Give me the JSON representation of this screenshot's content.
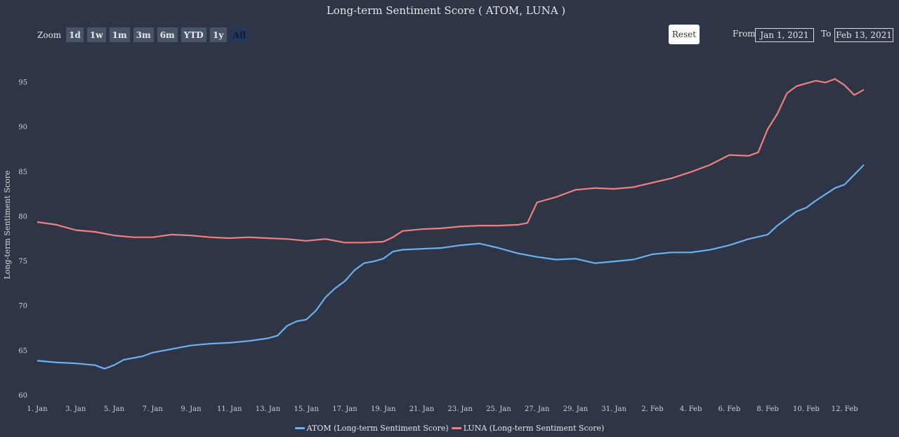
{
  "title": "Long-term Sentiment Score ( ATOM, LUNA )",
  "zoom": {
    "label": "Zoom",
    "buttons": [
      "1d",
      "1w",
      "1m",
      "3m",
      "6m",
      "YTD",
      "1y",
      "All"
    ],
    "active": "All"
  },
  "reset_label": "Reset",
  "range": {
    "from_label": "From",
    "from_value": "Jan 1, 2021",
    "to_label": "To",
    "to_value": "Feb 13, 2021"
  },
  "colors": {
    "background": "#2d3546",
    "atom": "#6cb0ee",
    "luna": "#f08080"
  },
  "chart_data": {
    "type": "line",
    "title": "Long-term Sentiment Score ( ATOM, LUNA )",
    "xlabel": "",
    "ylabel": "Long-term Sentiment Score",
    "x_range": [
      "2021-01-01",
      "2021-02-13"
    ],
    "ylim": [
      60,
      97
    ],
    "y_ticks": [
      60,
      65,
      70,
      75,
      80,
      85,
      90,
      95
    ],
    "x_ticks": [
      {
        "date": "2021-01-01",
        "label": "1. Jan"
      },
      {
        "date": "2021-01-03",
        "label": "3. Jan"
      },
      {
        "date": "2021-01-05",
        "label": "5. Jan"
      },
      {
        "date": "2021-01-07",
        "label": "7. Jan"
      },
      {
        "date": "2021-01-09",
        "label": "9. Jan"
      },
      {
        "date": "2021-01-11",
        "label": "11. Jan"
      },
      {
        "date": "2021-01-13",
        "label": "13. Jan"
      },
      {
        "date": "2021-01-15",
        "label": "15. Jan"
      },
      {
        "date": "2021-01-17",
        "label": "17. Jan"
      },
      {
        "date": "2021-01-19",
        "label": "19. Jan"
      },
      {
        "date": "2021-01-21",
        "label": "21. Jan"
      },
      {
        "date": "2021-01-23",
        "label": "23. Jan"
      },
      {
        "date": "2021-01-25",
        "label": "25. Jan"
      },
      {
        "date": "2021-01-27",
        "label": "27. Jan"
      },
      {
        "date": "2021-01-29",
        "label": "29. Jan"
      },
      {
        "date": "2021-01-31",
        "label": "31. Jan"
      },
      {
        "date": "2021-02-02",
        "label": "2. Feb"
      },
      {
        "date": "2021-02-04",
        "label": "4. Feb"
      },
      {
        "date": "2021-02-06",
        "label": "6. Feb"
      },
      {
        "date": "2021-02-08",
        "label": "8. Feb"
      },
      {
        "date": "2021-02-10",
        "label": "10. Feb"
      },
      {
        "date": "2021-02-12",
        "label": "12. Feb"
      }
    ],
    "grid": false,
    "legend_position": "bottom-center",
    "series": [
      {
        "name": "ATOM (Long-term Sentiment Score)",
        "color": "#6cb0ee",
        "points": [
          [
            "2021-01-01",
            63.9
          ],
          [
            "2021-01-02",
            63.7
          ],
          [
            "2021-01-03",
            63.6
          ],
          [
            "2021-01-04",
            63.4
          ],
          [
            "2021-01-04 12:00",
            63.0
          ],
          [
            "2021-01-05",
            63.4
          ],
          [
            "2021-01-05 12:00",
            64.0
          ],
          [
            "2021-01-06",
            64.2
          ],
          [
            "2021-01-06 12:00",
            64.4
          ],
          [
            "2021-01-07",
            64.8
          ],
          [
            "2021-01-08",
            65.2
          ],
          [
            "2021-01-09",
            65.6
          ],
          [
            "2021-01-10",
            65.8
          ],
          [
            "2021-01-11",
            65.9
          ],
          [
            "2021-01-12",
            66.1
          ],
          [
            "2021-01-13",
            66.4
          ],
          [
            "2021-01-13 12:00",
            66.7
          ],
          [
            "2021-01-14",
            67.8
          ],
          [
            "2021-01-14 12:00",
            68.3
          ],
          [
            "2021-01-15",
            68.5
          ],
          [
            "2021-01-15 12:00",
            69.5
          ],
          [
            "2021-01-16",
            71.0
          ],
          [
            "2021-01-16 12:00",
            72.0
          ],
          [
            "2021-01-17",
            72.8
          ],
          [
            "2021-01-17 12:00",
            74.0
          ],
          [
            "2021-01-18",
            74.8
          ],
          [
            "2021-01-18 12:00",
            75.0
          ],
          [
            "2021-01-19",
            75.3
          ],
          [
            "2021-01-19 12:00",
            76.1
          ],
          [
            "2021-01-20",
            76.3
          ],
          [
            "2021-01-21",
            76.4
          ],
          [
            "2021-01-22",
            76.5
          ],
          [
            "2021-01-23",
            76.8
          ],
          [
            "2021-01-24",
            77.0
          ],
          [
            "2021-01-25",
            76.5
          ],
          [
            "2021-01-26",
            75.9
          ],
          [
            "2021-01-27",
            75.5
          ],
          [
            "2021-01-28",
            75.2
          ],
          [
            "2021-01-29",
            75.3
          ],
          [
            "2021-01-30",
            74.8
          ],
          [
            "2021-01-31",
            75.0
          ],
          [
            "2021-02-01",
            75.2
          ],
          [
            "2021-02-02",
            75.8
          ],
          [
            "2021-02-03",
            76.0
          ],
          [
            "2021-02-04",
            76.0
          ],
          [
            "2021-02-05",
            76.3
          ],
          [
            "2021-02-06",
            76.8
          ],
          [
            "2021-02-07",
            77.5
          ],
          [
            "2021-02-08",
            78.0
          ],
          [
            "2021-02-08 12:00",
            79.0
          ],
          [
            "2021-02-09",
            79.8
          ],
          [
            "2021-02-09 12:00",
            80.6
          ],
          [
            "2021-02-10",
            81.0
          ],
          [
            "2021-02-10 12:00",
            81.8
          ],
          [
            "2021-02-11",
            82.5
          ],
          [
            "2021-02-11 12:00",
            83.2
          ],
          [
            "2021-02-12",
            83.6
          ],
          [
            "2021-02-12 12:00",
            84.7
          ],
          [
            "2021-02-13",
            85.8
          ]
        ]
      },
      {
        "name": "LUNA (Long-term Sentiment Score)",
        "color": "#f08080",
        "points": [
          [
            "2021-01-01",
            79.4
          ],
          [
            "2021-01-02",
            79.1
          ],
          [
            "2021-01-03",
            78.5
          ],
          [
            "2021-01-04",
            78.3
          ],
          [
            "2021-01-05",
            77.9
          ],
          [
            "2021-01-06",
            77.7
          ],
          [
            "2021-01-07",
            77.7
          ],
          [
            "2021-01-08",
            78.0
          ],
          [
            "2021-01-09",
            77.9
          ],
          [
            "2021-01-10",
            77.7
          ],
          [
            "2021-01-11",
            77.6
          ],
          [
            "2021-01-12",
            77.7
          ],
          [
            "2021-01-13",
            77.6
          ],
          [
            "2021-01-14",
            77.5
          ],
          [
            "2021-01-15",
            77.3
          ],
          [
            "2021-01-16",
            77.5
          ],
          [
            "2021-01-17",
            77.1
          ],
          [
            "2021-01-18",
            77.1
          ],
          [
            "2021-01-19",
            77.2
          ],
          [
            "2021-01-19 12:00",
            77.7
          ],
          [
            "2021-01-20",
            78.4
          ],
          [
            "2021-01-21",
            78.6
          ],
          [
            "2021-01-22",
            78.7
          ],
          [
            "2021-01-23",
            78.9
          ],
          [
            "2021-01-24",
            79.0
          ],
          [
            "2021-01-25",
            79.0
          ],
          [
            "2021-01-26",
            79.1
          ],
          [
            "2021-01-26 12:00",
            79.3
          ],
          [
            "2021-01-27",
            81.6
          ],
          [
            "2021-01-28",
            82.2
          ],
          [
            "2021-01-29",
            83.0
          ],
          [
            "2021-01-30",
            83.2
          ],
          [
            "2021-01-31",
            83.1
          ],
          [
            "2021-02-01",
            83.3
          ],
          [
            "2021-02-02",
            83.8
          ],
          [
            "2021-02-03",
            84.3
          ],
          [
            "2021-02-04",
            85.0
          ],
          [
            "2021-02-05",
            85.8
          ],
          [
            "2021-02-06",
            86.9
          ],
          [
            "2021-02-07",
            86.8
          ],
          [
            "2021-02-07 12:00",
            87.2
          ],
          [
            "2021-02-08",
            89.8
          ],
          [
            "2021-02-08 12:00",
            91.5
          ],
          [
            "2021-02-09",
            93.8
          ],
          [
            "2021-02-09 12:00",
            94.6
          ],
          [
            "2021-02-10",
            94.9
          ],
          [
            "2021-02-10 12:00",
            95.2
          ],
          [
            "2021-02-11",
            95.0
          ],
          [
            "2021-02-11 12:00",
            95.4
          ],
          [
            "2021-02-12",
            94.7
          ],
          [
            "2021-02-12 12:00",
            93.6
          ],
          [
            "2021-02-13",
            94.2
          ]
        ]
      }
    ]
  }
}
